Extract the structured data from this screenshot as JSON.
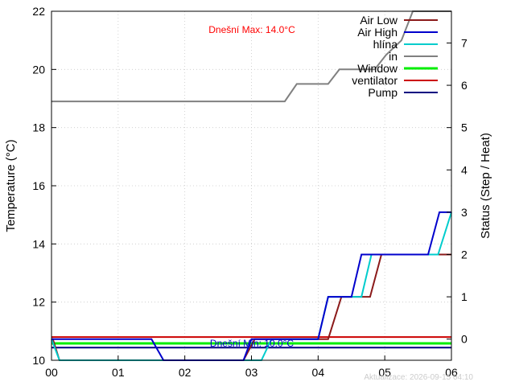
{
  "chart_data": {
    "type": "line",
    "xlabel": "",
    "ylabel": "Temperature (°C)",
    "y2label": "Status (Step / Heat)",
    "xlim": [
      0,
      6
    ],
    "ylim": [
      10,
      22
    ],
    "y2lim": [
      -0.5,
      7.75
    ],
    "x_ticks": [
      0,
      1,
      2,
      3,
      4,
      5,
      6
    ],
    "x_tick_labels": [
      "00",
      "01",
      "02",
      "03",
      "04",
      "05",
      "06"
    ],
    "y_ticks": [
      10,
      12,
      14,
      16,
      18,
      20,
      22
    ],
    "y2_ticks": [
      0,
      1,
      2,
      3,
      4,
      5,
      6,
      7
    ],
    "grid": true,
    "legend_position": "top-right",
    "series": [
      {
        "name": "Air Low",
        "color": "#8b1a1a",
        "axis": "y2",
        "x": [
          0,
          0.02,
          0.12,
          1.5,
          1.68,
          2.88,
          3.05,
          3.32,
          4.15,
          4.35,
          4.78,
          4.95,
          5.9,
          6
        ],
        "y": [
          0,
          0,
          -0.5,
          -0.5,
          -0.5,
          -0.5,
          0,
          0,
          0,
          1,
          1,
          2,
          2,
          2
        ]
      },
      {
        "name": "Air High",
        "color": "#0000cc",
        "axis": "y2",
        "x": [
          0,
          1.5,
          1.68,
          2.88,
          3.0,
          3.32,
          4.0,
          4.15,
          4.5,
          4.65,
          5.65,
          5.82,
          6
        ],
        "y": [
          0,
          0,
          -0.5,
          -0.5,
          0,
          0,
          0,
          1,
          1,
          2,
          2,
          3,
          3
        ]
      },
      {
        "name": "hlína",
        "color": "#00cccc",
        "axis": "y2",
        "x": [
          0,
          0.12,
          3.15,
          3.3,
          4.0,
          4.15,
          4.65,
          4.8,
          5.8,
          6
        ],
        "y": [
          0,
          -0.5,
          -0.5,
          0,
          0,
          1,
          1,
          2,
          2,
          3
        ]
      },
      {
        "name": "in",
        "color": "#808080",
        "axis": "y",
        "x": [
          0,
          3.5,
          3.68,
          4.15,
          4.32,
          4.85,
          5.02,
          5.25,
          5.42,
          6
        ],
        "y": [
          18.9,
          18.9,
          19.5,
          19.5,
          20.0,
          20.0,
          20.5,
          21.0,
          22.0,
          22.0
        ]
      },
      {
        "name": "Window",
        "color": "#00ee00",
        "axis": "y2",
        "x": [
          0,
          6
        ],
        "y": [
          -0.1,
          -0.1
        ]
      },
      {
        "name": "ventilator",
        "color": "#cc0000",
        "axis": "y2",
        "x": [
          0,
          6
        ],
        "y": [
          0.05,
          0.05
        ]
      },
      {
        "name": "Pump",
        "color": "#000080",
        "axis": "y2",
        "x": [
          0,
          6
        ],
        "y": [
          -0.2,
          -0.2
        ]
      }
    ],
    "annotations": {
      "max_text": "Dnešní Max: 14.0°C",
      "max_color": "#ff0000",
      "min_text": "Dnešní Min: 10.0°C",
      "min_color": "#0000cc"
    },
    "footer": "Aktualizace: 2026-09-15 04:10"
  }
}
